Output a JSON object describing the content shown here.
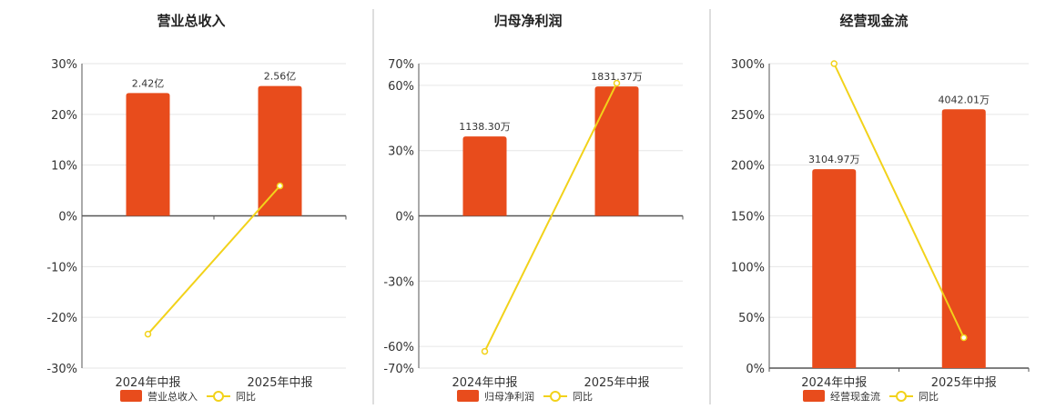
{
  "colors": {
    "bar": "#e84c1c",
    "line": "#f2d21a",
    "grid": "#e6e6e6",
    "axis": "#555555",
    "divider": "#bdbdbd"
  },
  "chart_data": [
    {
      "type": "bar",
      "title": "营业总收入",
      "categories": [
        "2024年中报",
        "2025年中报"
      ],
      "series": [
        {
          "name": "营业总收入",
          "type": "bar",
          "values": [
            24.2,
            25.6
          ],
          "labels": [
            "2.42亿",
            "2.56亿"
          ]
        },
        {
          "name": "同比",
          "type": "line",
          "values": [
            -23.3,
            5.9
          ]
        }
      ],
      "ylim": [
        -30,
        30
      ],
      "yticks": [
        30,
        20,
        10,
        0,
        -10,
        -20,
        -30
      ],
      "ytick_labels": [
        "30%",
        "20%",
        "10%",
        "0%",
        "-10%",
        "-20%",
        "-30%"
      ],
      "grid": true,
      "legend": "bottom"
    },
    {
      "type": "bar",
      "title": "归母净利润",
      "categories": [
        "2024年中报",
        "2025年中报"
      ],
      "series": [
        {
          "name": "归母净利润",
          "type": "bar",
          "values": [
            36.5,
            59.5
          ],
          "labels": [
            "1138.30万",
            "1831.37万"
          ]
        },
        {
          "name": "同比",
          "type": "line",
          "values": [
            -62.3,
            61.0
          ]
        }
      ],
      "ylim": [
        -70,
        70
      ],
      "yticks": [
        70,
        60,
        30,
        0,
        -30,
        -60,
        -70
      ],
      "ytick_labels": [
        "70%",
        "60%",
        "30%",
        "0%",
        "-30%",
        "-60%",
        "-70%"
      ],
      "grid": true,
      "legend": "bottom"
    },
    {
      "type": "bar",
      "title": "经营现金流",
      "categories": [
        "2024年中报",
        "2025年中报"
      ],
      "series": [
        {
          "name": "经营现金流",
          "type": "bar",
          "values": [
            196,
            255
          ],
          "labels": [
            "3104.97万",
            "4042.01万"
          ]
        },
        {
          "name": "同比",
          "type": "line",
          "values": [
            300,
            30
          ]
        }
      ],
      "ylim": [
        0,
        300
      ],
      "yticks": [
        300,
        250,
        200,
        150,
        100,
        50,
        0
      ],
      "ytick_labels": [
        "300%",
        "250%",
        "200%",
        "150%",
        "100%",
        "50%",
        "0%"
      ],
      "grid": true,
      "legend": "bottom"
    }
  ]
}
